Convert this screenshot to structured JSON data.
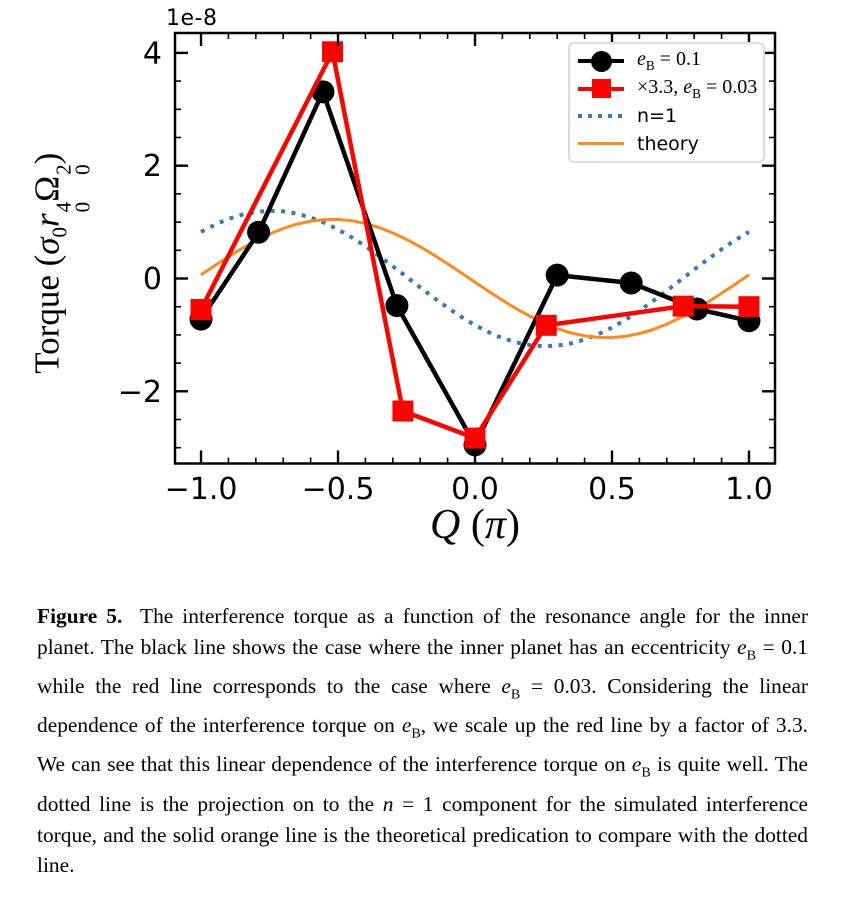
{
  "figure": {
    "offset_label": "1e-8",
    "x_ticks": {
      "values": [
        -1.0,
        -0.5,
        0.0,
        0.5,
        1.0
      ],
      "labels": [
        "−1.0",
        "−0.5",
        "0.0",
        "0.5",
        "1.0"
      ]
    },
    "y_ticks": {
      "values": [
        -2,
        0,
        2,
        4
      ],
      "labels": [
        "−2",
        "0",
        "2",
        "4"
      ]
    },
    "xlabel_segments": [
      {
        "t": "Q",
        "i": 1
      },
      {
        "t": " ("
      },
      {
        "t": "π",
        "i": 1
      },
      {
        "t": ")"
      }
    ],
    "ylabel_segments": [
      {
        "t": "Torque ("
      },
      {
        "t": "σ",
        "i": 1
      },
      {
        "t": "0",
        "sub": 1
      },
      {
        "t": "r",
        "i": 1
      },
      {
        "stack": 1,
        "sup": "4",
        "sub2": "0"
      },
      {
        "t": "Ω"
      },
      {
        "stack": 1,
        "sup": "2",
        "sub2": "0"
      },
      {
        "t": ")"
      }
    ]
  },
  "legend": {
    "entries": [
      {
        "name": "eb-0.1",
        "rich": [
          {
            "t": "e",
            "i": 1
          },
          {
            "t": "B",
            "sub": 1
          },
          {
            "t": " = 0.1"
          }
        ]
      },
      {
        "name": "eb-0.03",
        "rich": [
          {
            "t": "×3.3, "
          },
          {
            "t": "e",
            "i": 1
          },
          {
            "t": "B",
            "sub": 1
          },
          {
            "t": " = 0.03"
          }
        ]
      },
      {
        "name": "n-equals-1",
        "rich": [
          {
            "t": "n=1"
          }
        ]
      },
      {
        "name": "theory",
        "rich": [
          {
            "t": "theory"
          }
        ]
      }
    ]
  },
  "chart_data": {
    "type": "line",
    "xlabel": "Q (π)",
    "ylabel": "Torque (σ0 r0^4 Ω0^2)",
    "y_offset_scale": "1e-8",
    "xlim": [
      -1.095,
      1.095
    ],
    "ylim_1e8": [
      -3.28,
      4.35
    ],
    "grid": false,
    "legend_position": "upper right",
    "series": [
      {
        "name": "n=1",
        "style": "dotted",
        "color": "#3579b8",
        "marker": "none",
        "width": 4,
        "x": [
          -1,
          -0.95,
          -0.9,
          -0.85,
          -0.8,
          -0.75,
          -0.7,
          -0.65,
          -0.6,
          -0.55,
          -0.5,
          -0.45,
          -0.4,
          -0.35,
          -0.3,
          -0.25,
          -0.2,
          -0.15,
          -0.1,
          -0.05,
          0,
          0.05,
          0.1,
          0.15,
          0.2,
          0.25,
          0.3,
          0.35,
          0.4,
          0.45,
          0.5,
          0.55,
          0.6,
          0.65,
          0.7,
          0.75,
          0.8,
          0.85,
          0.9,
          0.95,
          1
        ],
        "y_1e8": [
          0.827,
          0.953,
          1.056,
          1.132,
          1.18,
          1.2,
          1.19,
          1.15,
          1.082,
          0.988,
          0.87,
          0.73,
          0.572,
          0.399,
          0.217,
          0.03,
          -0.158,
          -0.342,
          -0.518,
          -0.681,
          -0.827,
          -0.953,
          -1.056,
          -1.132,
          -1.18,
          -1.2,
          -1.19,
          -1.15,
          -1.082,
          -0.988,
          -0.87,
          -0.73,
          -0.572,
          -0.399,
          -0.217,
          -0.03,
          0.158,
          0.342,
          0.518,
          0.681,
          0.827
        ]
      },
      {
        "name": "theory",
        "style": "solid",
        "color": "#fb8b1e",
        "marker": "none",
        "width": 3,
        "x": [
          -1,
          -0.95,
          -0.9,
          -0.85,
          -0.8,
          -0.75,
          -0.7,
          -0.65,
          -0.6,
          -0.55,
          -0.5,
          -0.45,
          -0.4,
          -0.35,
          -0.3,
          -0.25,
          -0.2,
          -0.15,
          -0.1,
          -0.05,
          0,
          0.05,
          0.1,
          0.15,
          0.2,
          0.25,
          0.3,
          0.35,
          0.4,
          0.45,
          0.5,
          0.55,
          0.6,
          0.65,
          0.7,
          0.75,
          0.8,
          0.85,
          0.9,
          0.95,
          1
        ],
        "y_1e8": [
          0.066,
          0.229,
          0.387,
          0.534,
          0.669,
          0.788,
          0.887,
          0.964,
          1.017,
          1.045,
          1.048,
          1.024,
          0.976,
          0.904,
          0.809,
          0.694,
          0.563,
          0.417,
          0.261,
          0.099,
          -0.066,
          -0.229,
          -0.387,
          -0.534,
          -0.669,
          -0.788,
          -0.887,
          -0.964,
          -1.017,
          -1.045,
          -1.048,
          -1.024,
          -0.976,
          -0.904,
          -0.809,
          -0.694,
          -0.563,
          -0.417,
          -0.261,
          -0.099,
          0.066
        ]
      },
      {
        "name": "e_B = 0.1",
        "style": "solid",
        "color": "#000000",
        "marker": "circle",
        "width": 4.5,
        "x": [
          -1.0,
          -0.79,
          -0.555,
          -0.285,
          0.0,
          0.3,
          0.57,
          0.81,
          1.0
        ],
        "y_1e8": [
          -0.72,
          0.82,
          3.31,
          -0.48,
          -2.95,
          0.06,
          -0.08,
          -0.54,
          -0.75
        ]
      },
      {
        "name": "×3.3, e_B = 0.03",
        "style": "solid",
        "color": "#fb0400",
        "marker": "square",
        "width": 4.5,
        "x": [
          -1.0,
          -0.52,
          -0.263,
          0.0,
          0.26,
          0.76,
          1.0
        ],
        "y_1e8": [
          -0.55,
          4.02,
          -2.35,
          -2.83,
          -0.83,
          -0.49,
          -0.5
        ]
      }
    ]
  },
  "caption": {
    "segments": [
      {
        "t": "Figure 5.",
        "b": 1
      },
      {
        "t": "  The interference torque as a function of the resonance angle for the inner planet. The black line shows the case where the inner planet has an eccentricity "
      },
      {
        "t": "e",
        "i": 1
      },
      {
        "t": "B",
        "sub": 1
      },
      {
        "t": " = 0.1 while the red line corresponds to the case where "
      },
      {
        "t": "e",
        "i": 1
      },
      {
        "t": "B",
        "sub": 1
      },
      {
        "t": " = 0.03. Considering the linear dependence of the interference torque on "
      },
      {
        "t": "e",
        "i": 1
      },
      {
        "t": "B",
        "sub": 1
      },
      {
        "t": ", we scale up the red line by a factor of 3.3. We can see that this linear dependence of the interference torque on "
      },
      {
        "t": "e",
        "i": 1
      },
      {
        "t": "B",
        "sub": 1
      },
      {
        "t": " is quite well. The dotted line is the projection on to the "
      },
      {
        "t": "n",
        "i": 1
      },
      {
        "t": " = 1 component for the simulated interference torque, and the solid orange line is the theoretical predication to compare with the dotted line."
      }
    ]
  }
}
